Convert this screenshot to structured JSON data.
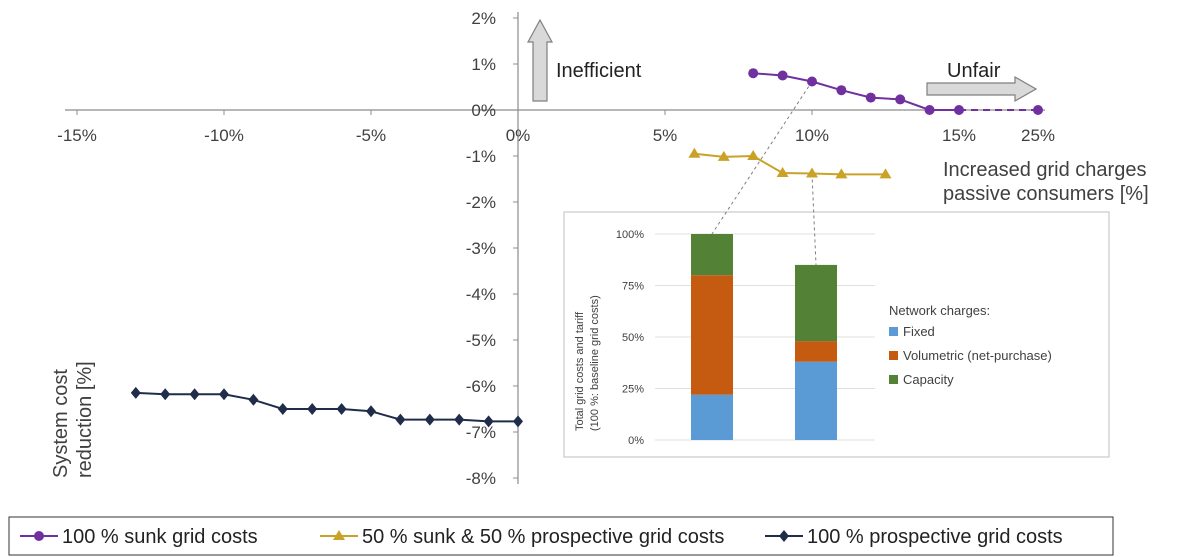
{
  "chart_data": [
    {
      "type": "line",
      "x_ticks": [
        "-15%",
        "-10%",
        "-5%",
        "0%",
        "5%",
        "10%",
        "15%",
        "25%"
      ],
      "y_ticks": [
        "2%",
        "1%",
        "0%",
        "-1%",
        "-2%",
        "-3%",
        "-4%",
        "-5%",
        "-6%",
        "-7%",
        "-8%"
      ],
      "xlabel": "Increased grid charges passive consumers [%]",
      "ylabel": "System cost reduction [%]",
      "annotations": {
        "inefficient": "Inefficient",
        "unfair": "Unfair"
      },
      "x_axis_break": "after 15%, dashed segment to 25%",
      "series": [
        {
          "name": "100 % sunk grid costs",
          "color": "#7030a0",
          "marker": "circle",
          "points": [
            [
              8,
              0.8
            ],
            [
              9,
              0.75
            ],
            [
              10,
              0.62
            ],
            [
              11,
              0.43
            ],
            [
              12,
              0.27
            ],
            [
              13,
              0.23
            ],
            [
              14,
              0.0
            ],
            [
              15,
              0.0
            ]
          ],
          "dashed_to": [
            25,
            0.0
          ]
        },
        {
          "name": "50 % sunk & 50 % prospective grid costs",
          "color": "#c9a227",
          "marker": "triangle",
          "points": [
            [
              6,
              -0.95
            ],
            [
              7,
              -1.02
            ],
            [
              8,
              -1.0
            ],
            [
              9,
              -1.37
            ],
            [
              10,
              -1.38
            ],
            [
              11,
              -1.4
            ],
            [
              12.5,
              -1.4
            ]
          ]
        },
        {
          "name": "100 % prospective grid costs",
          "color": "#1f2d4a",
          "marker": "diamond",
          "points": [
            [
              -13,
              -6.15
            ],
            [
              -12,
              -6.18
            ],
            [
              -11,
              -6.18
            ],
            [
              -10,
              -6.18
            ],
            [
              -9,
              -6.3
            ],
            [
              -8,
              -6.5
            ],
            [
              -7,
              -6.5
            ],
            [
              -6,
              -6.5
            ],
            [
              -5,
              -6.55
            ],
            [
              -4,
              -6.73
            ],
            [
              -3,
              -6.73
            ],
            [
              -2,
              -6.73
            ],
            [
              -1,
              -6.77
            ],
            [
              0,
              -6.77
            ]
          ]
        }
      ],
      "legend": "bottom, boxed"
    },
    {
      "type": "bar",
      "stacked": true,
      "ylabel": "Total grid costs and tariff (100 %: baseline grid costs)",
      "y_ticks": [
        "100%",
        "75%",
        "50%",
        "25%",
        "0%"
      ],
      "ylim": [
        0,
        100
      ],
      "legend_title": "Network charges:",
      "series": [
        {
          "name": "Fixed",
          "color": "#5b9bd5",
          "values": [
            22,
            38
          ]
        },
        {
          "name": "Volumetric (net-purchase)",
          "color": "#c55a11",
          "values": [
            58,
            10
          ]
        },
        {
          "name": "Capacity",
          "color": "#538135",
          "values": [
            20,
            37
          ]
        }
      ],
      "linked_points": [
        "100 % sunk grid costs at 10%",
        "50 % sunk & 50 % prospective grid costs at 10%"
      ]
    }
  ]
}
